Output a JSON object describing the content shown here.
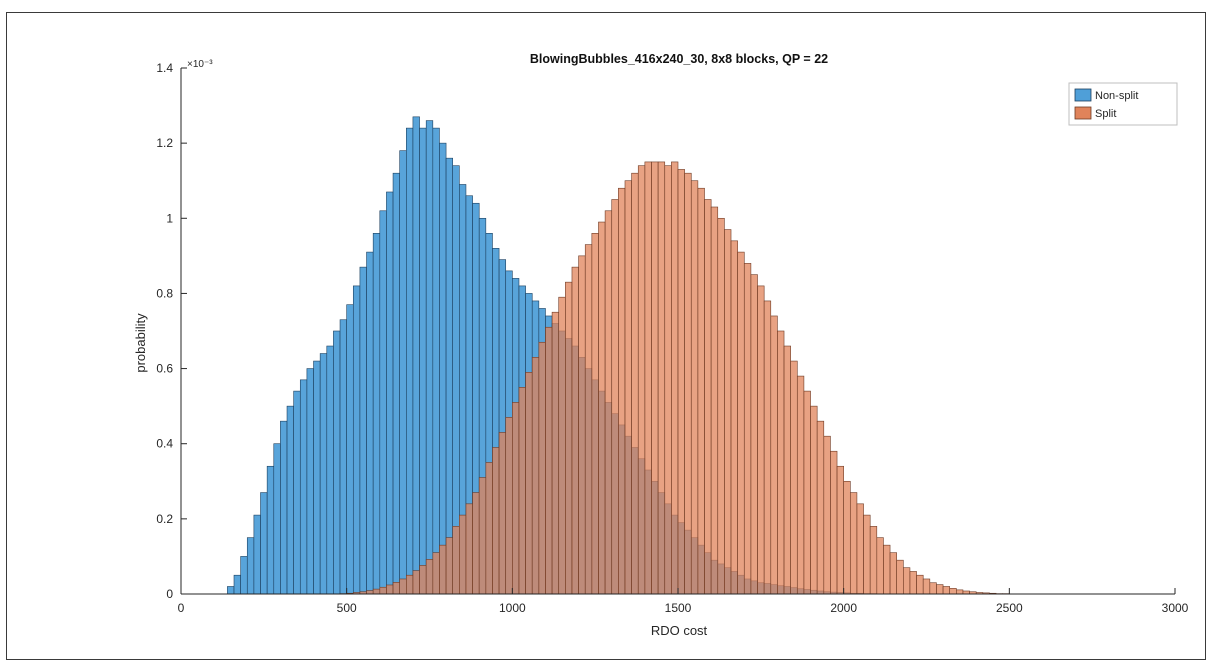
{
  "chart_data": {
    "type": "bar",
    "subtype": "overlaid-histogram",
    "title": "BlowingBubbles_416x240_30, 8x8 blocks, QP = 22",
    "xlabel": "RDO cost",
    "ylabel": "probability",
    "y_exponent_label": "×10⁻³",
    "xlim": [
      0,
      3000
    ],
    "ylim": [
      0,
      1.4
    ],
    "xticks": [
      0,
      500,
      1000,
      1500,
      2000,
      2500,
      3000
    ],
    "xtick_labels": [
      "0",
      "500",
      "1000",
      "1500",
      "2000",
      "2500",
      "3000"
    ],
    "yticks": [
      0,
      0.2,
      0.4,
      0.6,
      0.8,
      1.0,
      1.2,
      1.4
    ],
    "ytick_labels": [
      "0",
      "0.2",
      "0.4",
      "0.6",
      "0.8",
      "1",
      "1.2",
      "1.4"
    ],
    "grid": false,
    "legend_position": "top-right",
    "bin_width": 20,
    "bin_start": 0,
    "series": [
      {
        "name": "Non-split",
        "color": "#4f9fd8",
        "edge": "#1c3f5e",
        "values": [
          0,
          0,
          0,
          0,
          0,
          0,
          0,
          0.02,
          0.05,
          0.1,
          0.15,
          0.21,
          0.27,
          0.34,
          0.4,
          0.46,
          0.5,
          0.54,
          0.57,
          0.6,
          0.62,
          0.64,
          0.66,
          0.7,
          0.73,
          0.77,
          0.82,
          0.87,
          0.91,
          0.96,
          1.02,
          1.07,
          1.12,
          1.18,
          1.24,
          1.27,
          1.24,
          1.26,
          1.24,
          1.2,
          1.16,
          1.14,
          1.09,
          1.06,
          1.04,
          1.0,
          0.96,
          0.92,
          0.89,
          0.86,
          0.84,
          0.82,
          0.8,
          0.78,
          0.76,
          0.74,
          0.72,
          0.7,
          0.68,
          0.66,
          0.63,
          0.6,
          0.57,
          0.54,
          0.51,
          0.48,
          0.45,
          0.42,
          0.39,
          0.36,
          0.33,
          0.3,
          0.27,
          0.24,
          0.21,
          0.19,
          0.17,
          0.15,
          0.13,
          0.11,
          0.09,
          0.08,
          0.07,
          0.06,
          0.05,
          0.04,
          0.035,
          0.03,
          0.028,
          0.025,
          0.022,
          0.02,
          0.017,
          0.014,
          0.012,
          0.01,
          0.008,
          0.006,
          0.005,
          0.004,
          0.003,
          0.002,
          0.002,
          0.001,
          0.001,
          0,
          0,
          0,
          0,
          0,
          0,
          0,
          0,
          0,
          0,
          0,
          0,
          0,
          0,
          0,
          0,
          0,
          0,
          0,
          0,
          0,
          0,
          0,
          0,
          0,
          0,
          0,
          0,
          0,
          0,
          0,
          0,
          0,
          0,
          0,
          0,
          0,
          0,
          0,
          0,
          0,
          0,
          0,
          0,
          0
        ]
      },
      {
        "name": "Split",
        "color": "#e0835a",
        "edge": "#6e3a24",
        "values": [
          0,
          0,
          0,
          0,
          0,
          0,
          0,
          0,
          0,
          0,
          0,
          0,
          0,
          0,
          0,
          0,
          0,
          0,
          0,
          0,
          0,
          0,
          0,
          0,
          0.001,
          0.002,
          0.004,
          0.006,
          0.009,
          0.013,
          0.018,
          0.024,
          0.031,
          0.04,
          0.05,
          0.062,
          0.076,
          0.092,
          0.11,
          0.13,
          0.15,
          0.18,
          0.21,
          0.24,
          0.27,
          0.31,
          0.35,
          0.39,
          0.43,
          0.47,
          0.51,
          0.55,
          0.59,
          0.63,
          0.67,
          0.71,
          0.75,
          0.79,
          0.83,
          0.87,
          0.9,
          0.93,
          0.96,
          0.99,
          1.02,
          1.05,
          1.08,
          1.1,
          1.12,
          1.14,
          1.15,
          1.15,
          1.15,
          1.14,
          1.15,
          1.13,
          1.12,
          1.1,
          1.08,
          1.05,
          1.03,
          1.0,
          0.97,
          0.94,
          0.91,
          0.88,
          0.85,
          0.82,
          0.78,
          0.74,
          0.7,
          0.66,
          0.62,
          0.58,
          0.54,
          0.5,
          0.46,
          0.42,
          0.38,
          0.34,
          0.3,
          0.27,
          0.24,
          0.21,
          0.18,
          0.15,
          0.13,
          0.11,
          0.09,
          0.07,
          0.06,
          0.05,
          0.04,
          0.03,
          0.025,
          0.02,
          0.015,
          0.011,
          0.008,
          0.006,
          0.004,
          0.003,
          0.002,
          0.001,
          0.001,
          0,
          0,
          0,
          0,
          0,
          0,
          0,
          0,
          0,
          0,
          0,
          0,
          0,
          0,
          0,
          0,
          0,
          0,
          0
        ]
      }
    ]
  }
}
